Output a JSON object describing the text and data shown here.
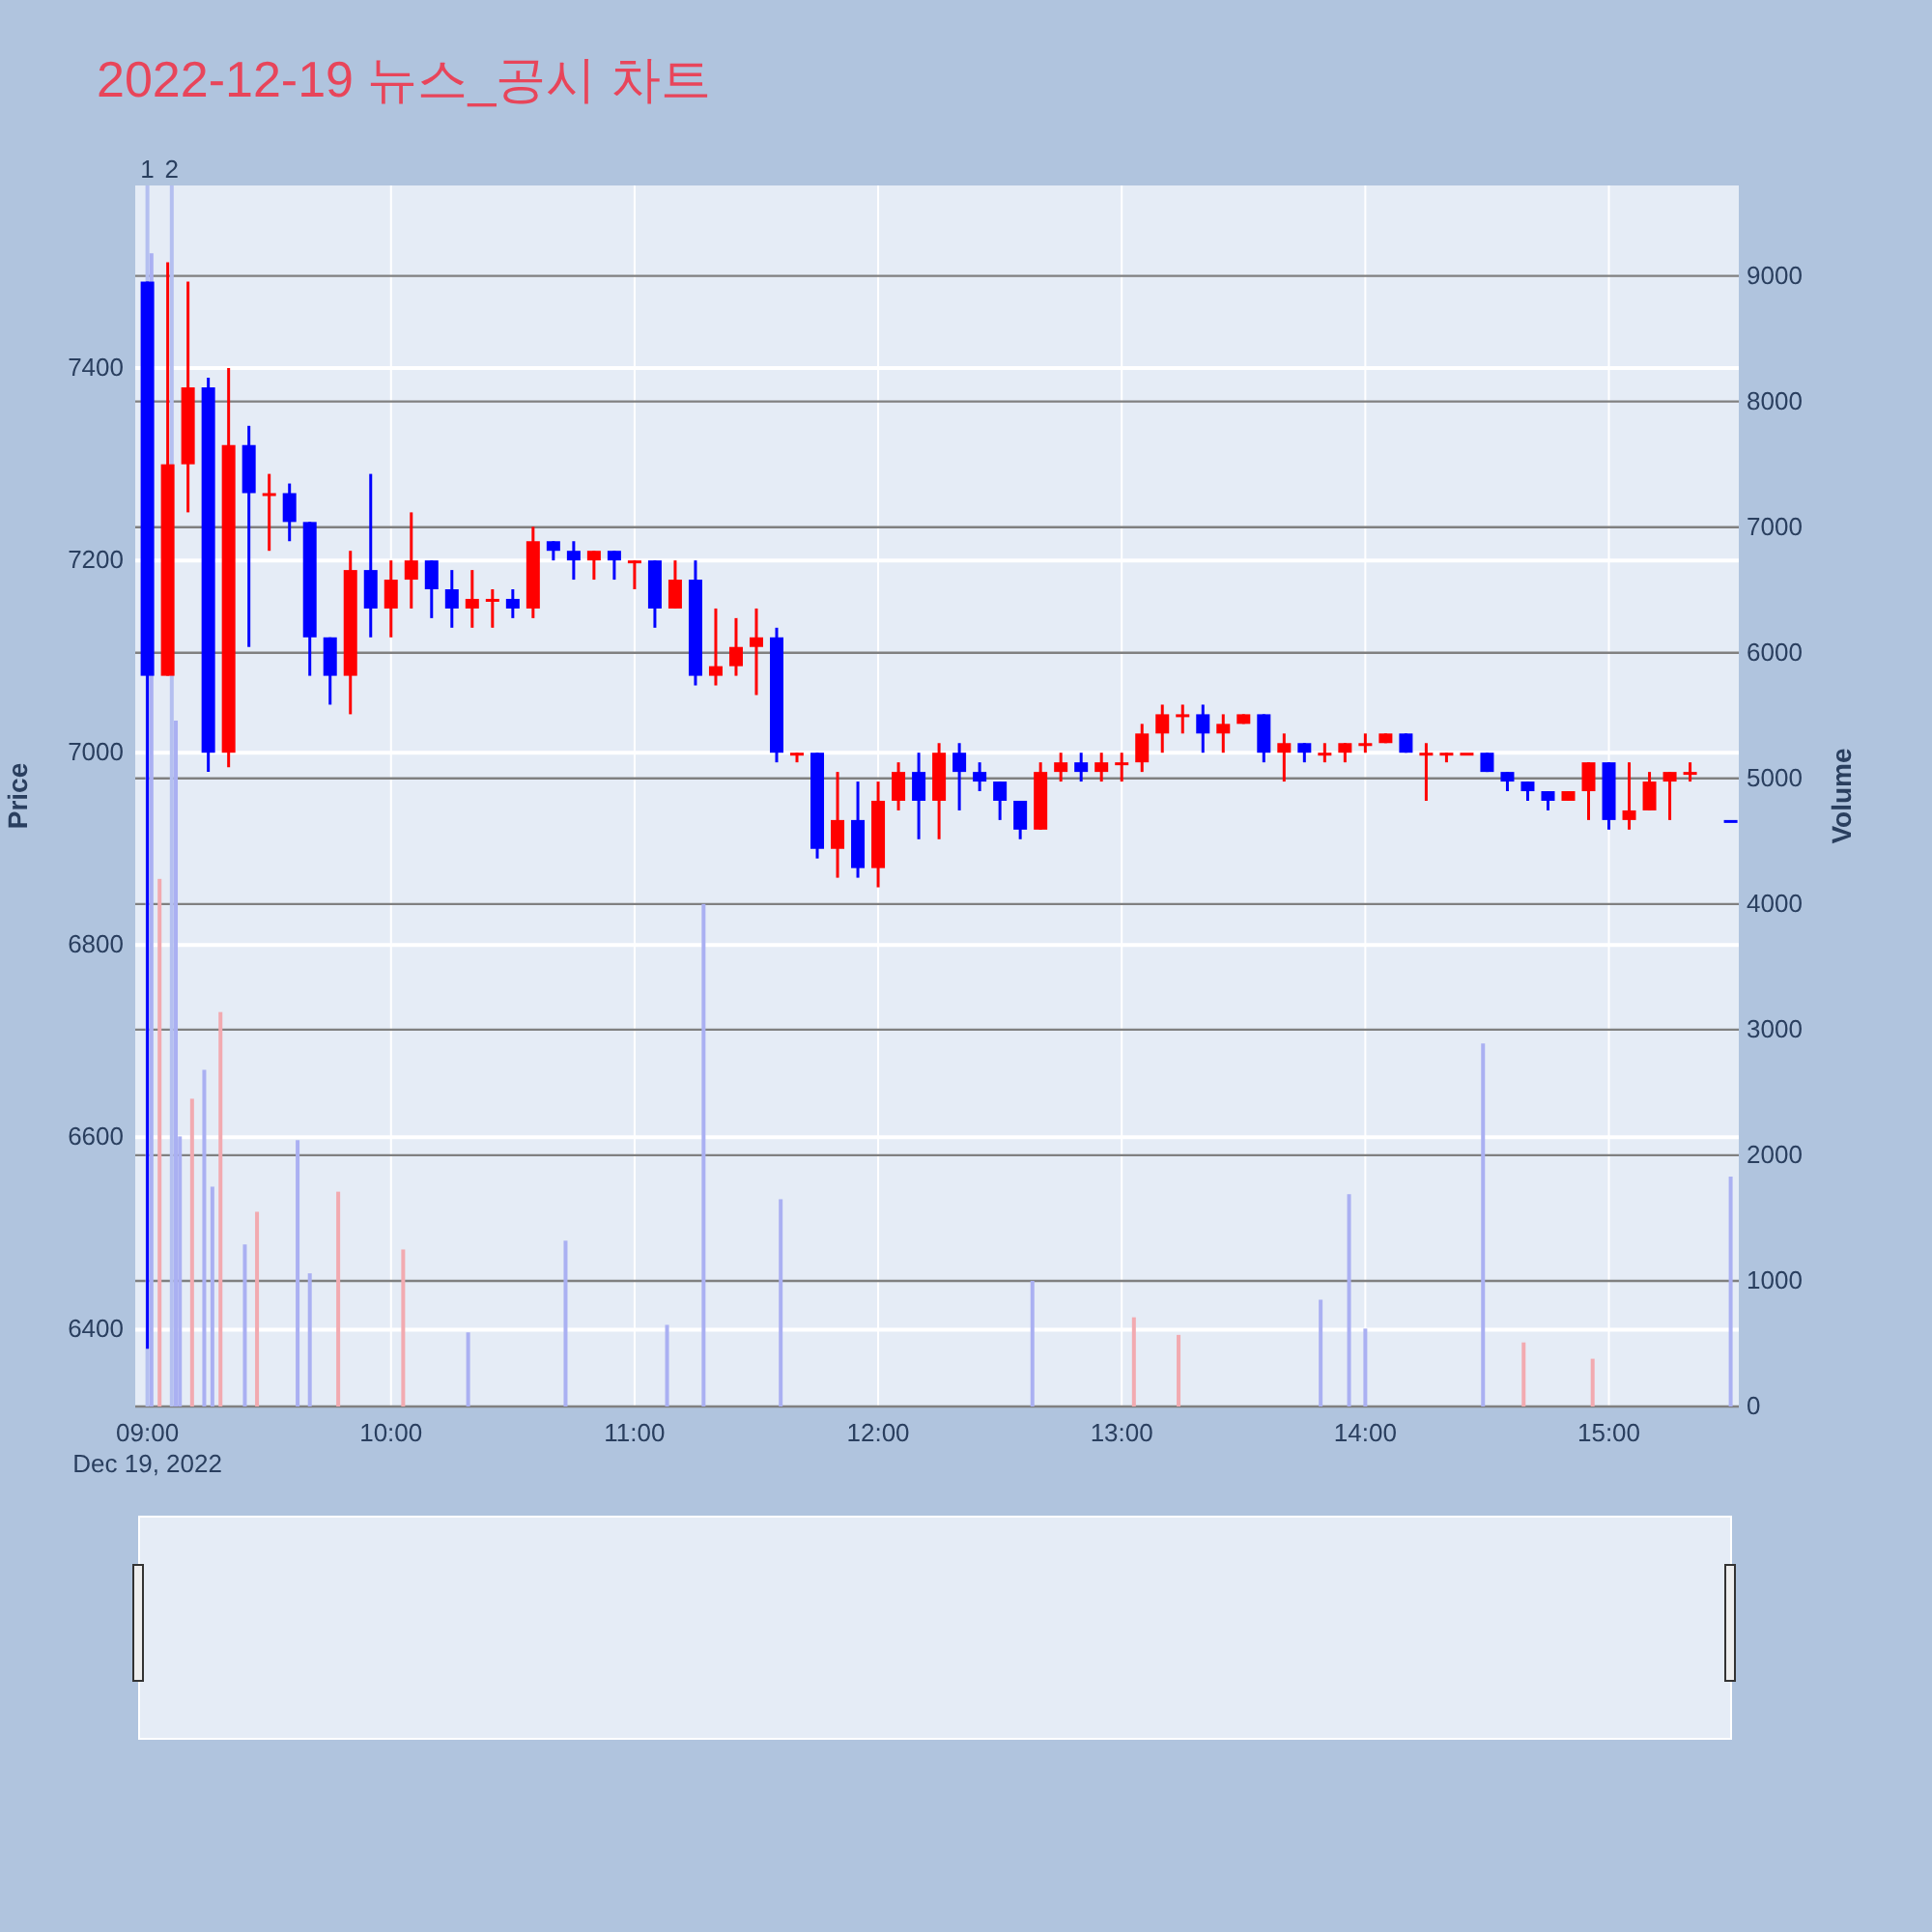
{
  "chart_data": {
    "type": "candlestick",
    "title": "2022-12-19 뉴스_공시 차트",
    "ylabel": "Price",
    "y2label": "Volume",
    "annotations": [
      "Dec 19, 2022"
    ],
    "xlim": [
      "2022-12-19T08:57",
      "2022-12-19T15:32"
    ],
    "xticks": [
      {
        "value": "2022-12-19T09:00",
        "label": "09:00"
      },
      {
        "value": "2022-12-19T10:00",
        "label": "10:00"
      },
      {
        "value": "2022-12-19T11:00",
        "label": "11:00"
      },
      {
        "value": "2022-12-19T12:00",
        "label": "12:00"
      },
      {
        "value": "2022-12-19T13:00",
        "label": "13:00"
      },
      {
        "value": "2022-12-19T14:00",
        "label": "14:00"
      },
      {
        "value": "2022-12-19T15:00",
        "label": "15:00"
      }
    ],
    "ylim": [
      6320,
      7590
    ],
    "yticks": [
      6400,
      6600,
      6800,
      7000,
      7200,
      7400
    ],
    "y2lim": [
      0,
      9720
    ],
    "y2ticks": [
      0,
      1000,
      2000,
      3000,
      4000,
      5000,
      6000,
      7000,
      8000,
      9000
    ],
    "grid": true,
    "ref_lines": [
      {
        "axis": "x",
        "value": "2022-12-19T09:00",
        "label": "1",
        "color": "#b4bff0"
      },
      {
        "axis": "x",
        "value": "2022-12-19T09:06",
        "label": "2",
        "color": "#b4bff0"
      }
    ],
    "series": [
      {
        "x": [
          "2022-12-19T09:00",
          "2022-12-19T09:05",
          "2022-12-19T09:10",
          "2022-12-19T09:15",
          "2022-12-19T09:20",
          "2022-12-19T09:25",
          "2022-12-19T09:30",
          "2022-12-19T09:35",
          "2022-12-19T09:40",
          "2022-12-19T09:45",
          "2022-12-19T09:50",
          "2022-12-19T09:55",
          "2022-12-19T10:00",
          "2022-12-19T10:05",
          "2022-12-19T10:10",
          "2022-12-19T10:15",
          "2022-12-19T10:20",
          "2022-12-19T10:25",
          "2022-12-19T10:30",
          "2022-12-19T10:35",
          "2022-12-19T10:40",
          "2022-12-19T10:45",
          "2022-12-19T10:50",
          "2022-12-19T10:55",
          "2022-12-19T11:00",
          "2022-12-19T11:05",
          "2022-12-19T11:10",
          "2022-12-19T11:15",
          "2022-12-19T11:20",
          "2022-12-19T11:25",
          "2022-12-19T11:30",
          "2022-12-19T11:35",
          "2022-12-19T11:40",
          "2022-12-19T11:45",
          "2022-12-19T11:50",
          "2022-12-19T11:55",
          "2022-12-19T12:00",
          "2022-12-19T12:05",
          "2022-12-19T12:10",
          "2022-12-19T12:15",
          "2022-12-19T12:20",
          "2022-12-19T12:25",
          "2022-12-19T12:30",
          "2022-12-19T12:35",
          "2022-12-19T12:40",
          "2022-12-19T12:45",
          "2022-12-19T12:50",
          "2022-12-19T12:55",
          "2022-12-19T13:00",
          "2022-12-19T13:05",
          "2022-12-19T13:10",
          "2022-12-19T13:15",
          "2022-12-19T13:20",
          "2022-12-19T13:25",
          "2022-12-19T13:30",
          "2022-12-19T13:35",
          "2022-12-19T13:40",
          "2022-12-19T13:45",
          "2022-12-19T13:50",
          "2022-12-19T13:55",
          "2022-12-19T14:00",
          "2022-12-19T14:05",
          "2022-12-19T14:10",
          "2022-12-19T14:15",
          "2022-12-19T14:20",
          "2022-12-19T14:25",
          "2022-12-19T14:30",
          "2022-12-19T14:35",
          "2022-12-19T14:40",
          "2022-12-19T14:45",
          "2022-12-19T14:50",
          "2022-12-19T14:55",
          "2022-12-19T15:00",
          "2022-12-19T15:05",
          "2022-12-19T15:10",
          "2022-12-19T15:15",
          "2022-12-19T15:20",
          "2022-12-19T15:30"
        ],
        "ohlc": [
          [
            7490,
            7490,
            6380,
            7080
          ],
          [
            7080,
            7510,
            7080,
            7300
          ],
          [
            7300,
            7490,
            7250,
            7380
          ],
          [
            7380,
            7390,
            6980,
            7000
          ],
          [
            7000,
            7400,
            6985,
            7320
          ],
          [
            7320,
            7340,
            7110,
            7270
          ],
          [
            7270,
            7290,
            7210,
            7270
          ],
          [
            7270,
            7280,
            7220,
            7240
          ],
          [
            7240,
            7240,
            7080,
            7120
          ],
          [
            7120,
            7120,
            7050,
            7080
          ],
          [
            7080,
            7210,
            7040,
            7190
          ],
          [
            7190,
            7290,
            7120,
            7150
          ],
          [
            7150,
            7200,
            7120,
            7180
          ],
          [
            7180,
            7250,
            7150,
            7200
          ],
          [
            7200,
            7200,
            7140,
            7170
          ],
          [
            7170,
            7190,
            7130,
            7150
          ],
          [
            7150,
            7190,
            7130,
            7160
          ],
          [
            7160,
            7170,
            7130,
            7160
          ],
          [
            7160,
            7170,
            7140,
            7150
          ],
          [
            7150,
            7235,
            7140,
            7220
          ],
          [
            7220,
            7220,
            7200,
            7210
          ],
          [
            7210,
            7220,
            7180,
            7200
          ],
          [
            7200,
            7210,
            7180,
            7210
          ],
          [
            7210,
            7210,
            7180,
            7200
          ],
          [
            7200,
            7200,
            7170,
            7200
          ],
          [
            7200,
            7200,
            7130,
            7150
          ],
          [
            7150,
            7200,
            7150,
            7180
          ],
          [
            7180,
            7200,
            7070,
            7080
          ],
          [
            7080,
            7150,
            7070,
            7090
          ],
          [
            7090,
            7140,
            7080,
            7110
          ],
          [
            7110,
            7150,
            7060,
            7120
          ],
          [
            7120,
            7130,
            6990,
            7000
          ],
          [
            7000,
            7000,
            6990,
            7000
          ],
          [
            7000,
            7000,
            6890,
            6900
          ],
          [
            6900,
            6980,
            6870,
            6930
          ],
          [
            6930,
            6970,
            6870,
            6880
          ],
          [
            6880,
            6970,
            6860,
            6950
          ],
          [
            6950,
            6990,
            6940,
            6980
          ],
          [
            6980,
            7000,
            6910,
            6950
          ],
          [
            6950,
            7010,
            6910,
            7000
          ],
          [
            7000,
            7010,
            6940,
            6980
          ],
          [
            6980,
            6990,
            6960,
            6970
          ],
          [
            6970,
            6970,
            6930,
            6950
          ],
          [
            6950,
            6950,
            6910,
            6920
          ],
          [
            6920,
            6990,
            6920,
            6980
          ],
          [
            6980,
            7000,
            6970,
            6990
          ],
          [
            6990,
            7000,
            6970,
            6980
          ],
          [
            6980,
            7000,
            6970,
            6990
          ],
          [
            6990,
            7000,
            6970,
            6990
          ],
          [
            6990,
            7030,
            6980,
            7020
          ],
          [
            7020,
            7050,
            7000,
            7040
          ],
          [
            7040,
            7050,
            7020,
            7040
          ],
          [
            7040,
            7050,
            7000,
            7020
          ],
          [
            7020,
            7040,
            7000,
            7030
          ],
          [
            7030,
            7040,
            7030,
            7040
          ],
          [
            7040,
            7040,
            6990,
            7000
          ],
          [
            7000,
            7020,
            6970,
            7010
          ],
          [
            7010,
            7010,
            6990,
            7000
          ],
          [
            7000,
            7010,
            6990,
            7000
          ],
          [
            7000,
            7010,
            6990,
            7010
          ],
          [
            7010,
            7020,
            7000,
            7010
          ],
          [
            7010,
            7020,
            7010,
            7020
          ],
          [
            7020,
            7020,
            7000,
            7000
          ],
          [
            7000,
            7010,
            6950,
            7000
          ],
          [
            7000,
            7000,
            6990,
            7000
          ],
          [
            7000,
            7000,
            7000,
            7000
          ],
          [
            7000,
            7000,
            6980,
            6980
          ],
          [
            6980,
            6980,
            6960,
            6970
          ],
          [
            6970,
            6970,
            6950,
            6960
          ],
          [
            6960,
            6960,
            6940,
            6950
          ],
          [
            6950,
            6960,
            6950,
            6960
          ],
          [
            6960,
            6990,
            6930,
            6990
          ],
          [
            6990,
            6990,
            6920,
            6930
          ],
          [
            6930,
            6990,
            6920,
            6940
          ],
          [
            6940,
            6980,
            6940,
            6970
          ],
          [
            6970,
            6980,
            6930,
            6980
          ],
          [
            6980,
            6990,
            6970,
            6980
          ],
          [
            6930,
            6930,
            6930,
            6930
          ]
        ],
        "colors": [
          "#0000ff",
          "#ff0000",
          "#ff0000",
          "#0000ff",
          "#ff0000",
          "#0000ff",
          "#ff0000",
          "#0000ff",
          "#0000ff",
          "#0000ff",
          "#ff0000",
          "#0000ff",
          "#ff0000",
          "#ff0000",
          "#0000ff",
          "#0000ff",
          "#ff0000",
          "#ff0000",
          "#0000ff",
          "#ff0000",
          "#0000ff",
          "#0000ff",
          "#ff0000",
          "#0000ff",
          "#ff0000",
          "#0000ff",
          "#ff0000",
          "#0000ff",
          "#ff0000",
          "#ff0000",
          "#ff0000",
          "#0000ff",
          "#ff0000",
          "#0000ff",
          "#ff0000",
          "#0000ff",
          "#ff0000",
          "#ff0000",
          "#0000ff",
          "#ff0000",
          "#0000ff",
          "#0000ff",
          "#0000ff",
          "#0000ff",
          "#ff0000",
          "#ff0000",
          "#0000ff",
          "#ff0000",
          "#ff0000",
          "#ff0000",
          "#ff0000",
          "#ff0000",
          "#0000ff",
          "#ff0000",
          "#ff0000",
          "#0000ff",
          "#ff0000",
          "#0000ff",
          "#ff0000",
          "#ff0000",
          "#ff0000",
          "#ff0000",
          "#0000ff",
          "#ff0000",
          "#ff0000",
          "#ff0000",
          "#0000ff",
          "#0000ff",
          "#0000ff",
          "#0000ff",
          "#ff0000",
          "#ff0000",
          "#0000ff",
          "#ff0000",
          "#ff0000",
          "#ff0000",
          "#ff0000",
          "#0000ff"
        ]
      },
      {
        "type": "bar",
        "axis": "y2",
        "x": [
          "2022-12-19T09:01",
          "2022-12-19T09:03",
          "2022-12-19T09:07",
          "2022-12-19T09:08",
          "2022-12-19T09:11",
          "2022-12-19T09:14",
          "2022-12-19T09:16",
          "2022-12-19T09:18",
          "2022-12-19T09:24",
          "2022-12-19T09:27",
          "2022-12-19T09:37",
          "2022-12-19T09:40",
          "2022-12-19T09:47",
          "2022-12-19T10:03",
          "2022-12-19T10:19",
          "2022-12-19T10:43",
          "2022-12-19T11:08",
          "2022-12-19T11:17",
          "2022-12-19T11:36",
          "2022-12-19T12:38",
          "2022-12-19T13:03",
          "2022-12-19T13:14",
          "2022-12-19T13:49",
          "2022-12-19T13:56",
          "2022-12-19T14:00",
          "2022-12-19T14:29",
          "2022-12-19T14:39",
          "2022-12-19T14:56",
          "2022-12-19T15:30"
        ],
        "values": [
          9180,
          4200,
          5460,
          2150,
          2450,
          2680,
          1750,
          3140,
          1290,
          1550,
          2120,
          1060,
          1710,
          1250,
          590,
          1320,
          650,
          4000,
          1650,
          1000,
          710,
          570,
          850,
          1690,
          620,
          2890,
          510,
          380,
          1830
        ],
        "colors": [
          "#aab0f2",
          "#f2aab0",
          "#aab0f2",
          "#aab0f2",
          "#f2aab0",
          "#aab0f2",
          "#aab0f2",
          "#f2aab0",
          "#aab0f2",
          "#f2aab0",
          "#aab0f2",
          "#aab0f2",
          "#f2aab0",
          "#f2aab0",
          "#aab0f2",
          "#aab0f2",
          "#aab0f2",
          "#aab0f2",
          "#aab0f2",
          "#aab0f2",
          "#f2aab0",
          "#f2aab0",
          "#aab0f2",
          "#aab0f2",
          "#aab0f2",
          "#aab0f2",
          "#f2aab0",
          "#f2aab0",
          "#aab0f2"
        ]
      }
    ]
  }
}
